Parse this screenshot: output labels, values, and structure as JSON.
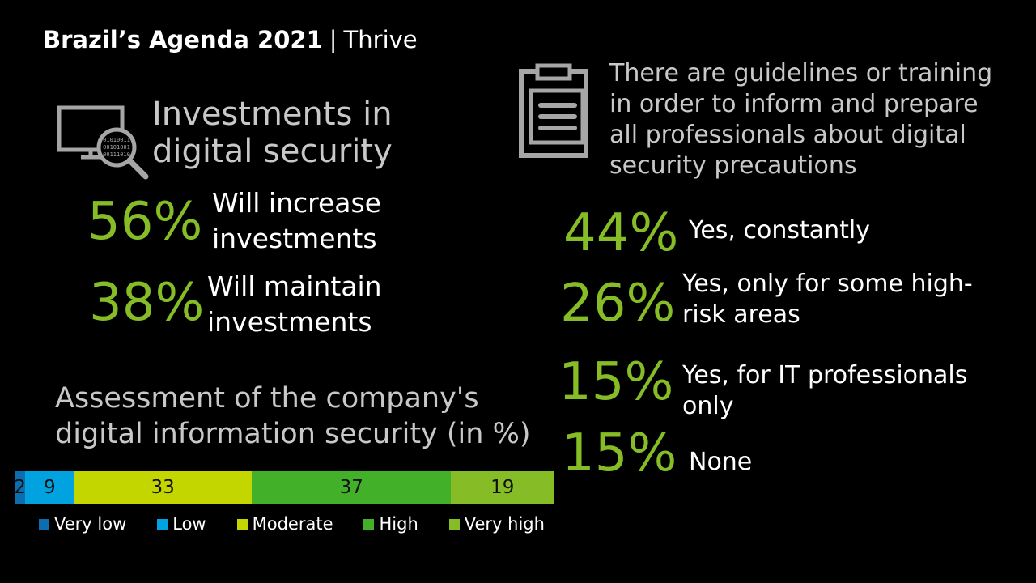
{
  "header": {
    "title_bold": "Brazil’s Agenda 2021",
    "separator": "|",
    "title_light": "Thrive"
  },
  "investments": {
    "icon": "monitor-magnifier-icon",
    "heading_line1": "Investments in",
    "heading_line2": "digital security",
    "items": [
      {
        "pct": "56%",
        "line1": "Will increase",
        "line2": "investments"
      },
      {
        "pct": "38%",
        "line1": "Will maintain",
        "line2": "investments"
      }
    ]
  },
  "guidelines": {
    "icon": "clipboard-icon",
    "text_lines": [
      "There are guidelines or training",
      "in order to inform and prepare",
      "all professionals about digital",
      "security precautions"
    ],
    "items": [
      {
        "pct": "44%",
        "line1": "Yes, constantly",
        "line2": ""
      },
      {
        "pct": "26%",
        "line1": "Yes, only for some high-",
        "line2": "risk areas"
      },
      {
        "pct": "15%",
        "line1": "Yes, for IT professionals",
        "line2": "only"
      },
      {
        "pct": "15%",
        "line1": "None",
        "line2": ""
      }
    ]
  },
  "colors": {
    "accent_green": "#86bc25",
    "very_low": "#0d6eaf",
    "low": "#00a3e0",
    "moderate": "#c4d600",
    "high": "#43b02a",
    "very_high": "#86bc25"
  },
  "chart_data": {
    "type": "bar",
    "orientation": "horizontal-stacked",
    "title_line1": "Assessment of the company's",
    "title_line2": "digital information security (in %)",
    "series": [
      {
        "name": "Very low",
        "value": 2,
        "label": "2"
      },
      {
        "name": "Low",
        "value": 9,
        "label": "9"
      },
      {
        "name": "Moderate",
        "value": 33,
        "label": "33"
      },
      {
        "name": "High",
        "value": 37,
        "label": "37"
      },
      {
        "name": "Very high",
        "value": 19,
        "label": "19"
      }
    ],
    "legend_position": "bottom"
  }
}
